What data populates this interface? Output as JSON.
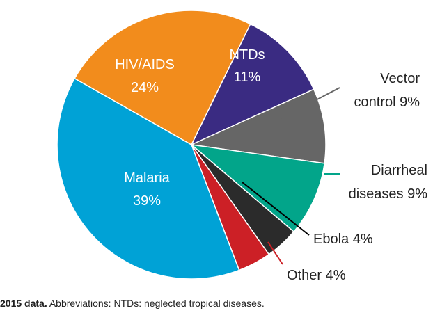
{
  "chart_data": {
    "type": "pie",
    "title": "",
    "slices": [
      {
        "label": "NTDs",
        "value": 11,
        "percent_label": "11%",
        "color": "#3a2b82"
      },
      {
        "label": "Vector control",
        "value": 9,
        "percent_label": "9%",
        "color": "#666666"
      },
      {
        "label": "Diarrheal diseases",
        "value": 9,
        "percent_label": "9%",
        "color": "#02a58a"
      },
      {
        "label": "Ebola",
        "value": 4,
        "percent_label": "4%",
        "color": "#2b2b2b"
      },
      {
        "label": "Other",
        "value": 4,
        "percent_label": "4%",
        "color": "#cc2026"
      },
      {
        "label": "Malaria",
        "value": 39,
        "percent_label": "39%",
        "color": "#00a2d6"
      },
      {
        "label": "HIV/AIDS",
        "value": 24,
        "percent_label": "24%",
        "color": "#f28c1c"
      }
    ],
    "label_texts": {
      "NTDs": [
        "NTDs",
        "11%"
      ],
      "Vector control": [
        "Vector",
        "control 9%"
      ],
      "Diarrheal diseases": [
        "Diarrheal",
        "diseases 9%"
      ],
      "Ebola": [
        "Ebola 4%"
      ],
      "Other": [
        "Other 4%"
      ],
      "Malaria": [
        "Malaria",
        "39%"
      ],
      "HIV/AIDS": [
        "HIV/AIDS",
        "24%"
      ]
    }
  },
  "caption": {
    "bold": "2015 data.",
    "text": " Abbreviations: NTDs: neglected tropical diseases."
  }
}
